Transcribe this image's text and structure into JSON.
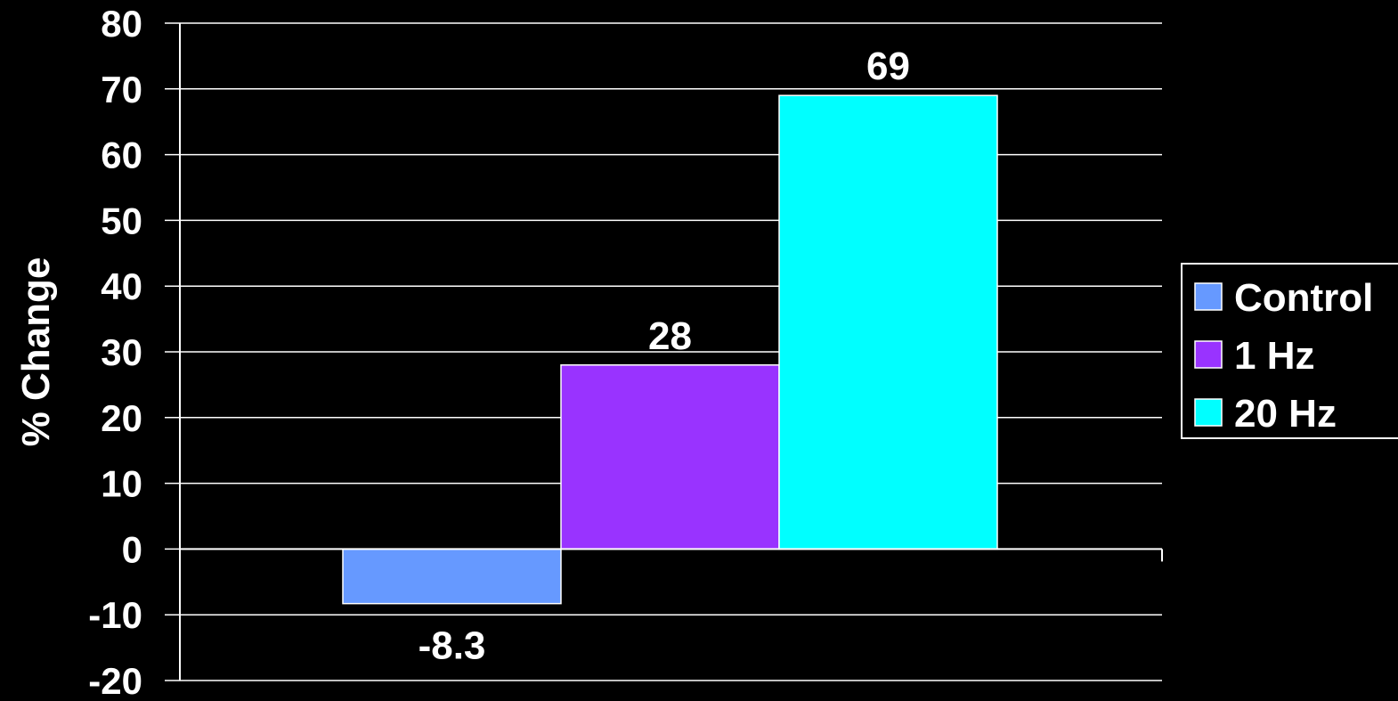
{
  "chart_data": {
    "type": "bar",
    "ylabel": "% Change",
    "ylim": [
      -20,
      80
    ],
    "yticks": [
      80,
      70,
      60,
      50,
      40,
      30,
      20,
      10,
      0,
      -10,
      -20
    ],
    "grid": true,
    "legend_position": "right",
    "series": [
      {
        "name": "Control",
        "values": [
          -8.3
        ],
        "label": "-8.3",
        "color": "#6699ff"
      },
      {
        "name": "1 Hz",
        "values": [
          28
        ],
        "label": "28",
        "color": "#9933ff"
      },
      {
        "name": "20 Hz",
        "values": [
          69
        ],
        "label": "69",
        "color": "#00ffff"
      }
    ]
  }
}
